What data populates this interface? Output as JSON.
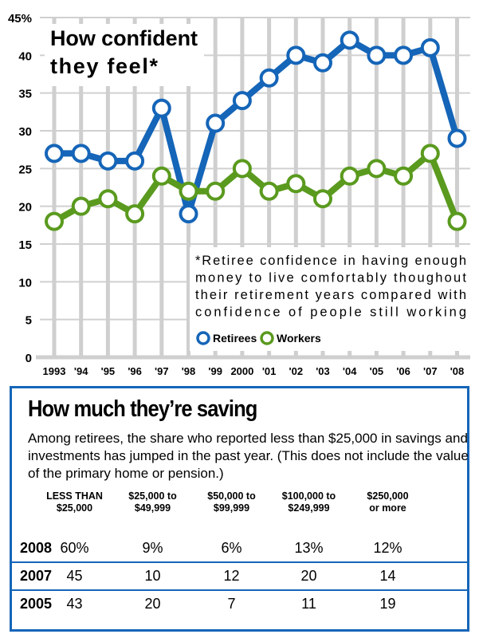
{
  "chart_data": {
    "type": "line",
    "title": "How confident they feel*",
    "x": [
      "1993",
      "'94",
      "'95",
      "'96",
      "'97",
      "'98",
      "'99",
      "2000",
      "'01",
      "'02",
      "'03",
      "'04",
      "'05",
      "'06",
      "'07",
      "'08"
    ],
    "yticks": [
      "0",
      "5",
      "10",
      "15",
      "20",
      "25",
      "30",
      "35",
      "40",
      "45%"
    ],
    "ylim": [
      0,
      45
    ],
    "grid": true,
    "series": [
      {
        "name": "Retirees",
        "color": "#1565b8",
        "values": [
          27,
          27,
          26,
          26,
          33,
          19,
          31,
          34,
          37,
          40,
          39,
          42,
          40,
          40,
          41,
          29
        ]
      },
      {
        "name": "Workers",
        "color": "#5a9a1e",
        "values": [
          18,
          20,
          21,
          19,
          24,
          22,
          22,
          25,
          22,
          23,
          21,
          24,
          25,
          24,
          27,
          18
        ]
      }
    ],
    "note_lines": [
      "*Retiree confidence in having enough",
      "money to live comfortably thoughout",
      "their retirement years compared with",
      "confidence of people still working"
    ],
    "legend_placement": "bottom-right"
  },
  "savings": {
    "title": "How much they’re saving",
    "description": "Among retirees, the share who reported less than $25,000 in savings and investments has jumped in the past year. (This does not include the value of the primary home or pension.)",
    "headers": [
      [
        "LESS THAN",
        "$25,000"
      ],
      [
        "$25,000 to",
        "$49,999"
      ],
      [
        "$50,000 to",
        "$99,999"
      ],
      [
        "$100,000 to",
        "$249,999"
      ],
      [
        "$250,000",
        "or more"
      ]
    ],
    "rows": [
      {
        "year": "2008",
        "values": [
          "60%",
          "9%",
          "6%",
          "13%",
          "12%"
        ]
      },
      {
        "year": "2007",
        "values": [
          "45",
          "10",
          "12",
          "20",
          "14"
        ]
      },
      {
        "year": "2005",
        "values": [
          "43",
          "20",
          "7",
          "11",
          "19"
        ]
      }
    ]
  }
}
